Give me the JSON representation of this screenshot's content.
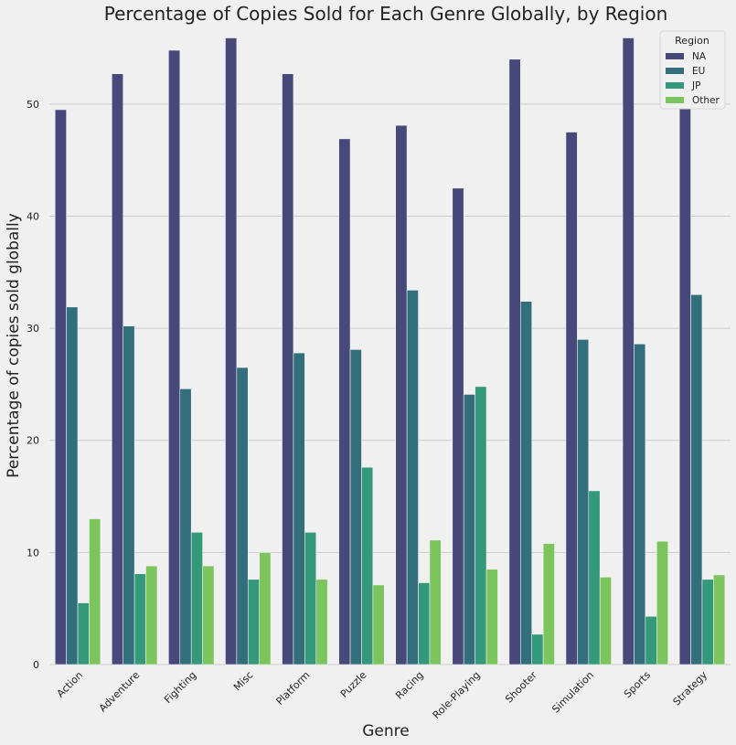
{
  "chart_data": {
    "type": "bar",
    "title": "Percentage of Copies Sold for Each Genre Globally, by Region",
    "xlabel": "Genre",
    "ylabel": "Percentage of copies sold globally",
    "ylim": [
      0,
      57
    ],
    "yticks": [
      0,
      10,
      20,
      30,
      40,
      50
    ],
    "grid": "y",
    "legend_title": "Region",
    "legend_position": "top-right",
    "categories": [
      "Action",
      "Adventure",
      "Fighting",
      "Misc",
      "Platform",
      "Puzzle",
      "Racing",
      "Role-Playing",
      "Shooter",
      "Simulation",
      "Sports",
      "Strategy"
    ],
    "series": [
      {
        "name": "NA",
        "color": "#46497a",
        "values": [
          49.5,
          52.7,
          54.8,
          55.9,
          52.7,
          46.9,
          48.1,
          42.5,
          54.0,
          47.5,
          55.9,
          51.1
        ]
      },
      {
        "name": "EU",
        "color": "#336e7c",
        "values": [
          31.9,
          30.2,
          24.6,
          26.5,
          27.8,
          28.1,
          33.4,
          24.1,
          32.4,
          29.0,
          28.6,
          33.0
        ]
      },
      {
        "name": "JP",
        "color": "#33997a",
        "values": [
          5.5,
          8.1,
          11.8,
          7.6,
          11.8,
          17.6,
          7.3,
          24.8,
          2.7,
          15.5,
          4.3,
          7.6
        ]
      },
      {
        "name": "Other",
        "color": "#7cc55e",
        "values": [
          13.0,
          8.8,
          8.8,
          10.0,
          7.6,
          7.1,
          11.1,
          8.5,
          10.8,
          7.8,
          11.0,
          8.0
        ]
      }
    ]
  }
}
